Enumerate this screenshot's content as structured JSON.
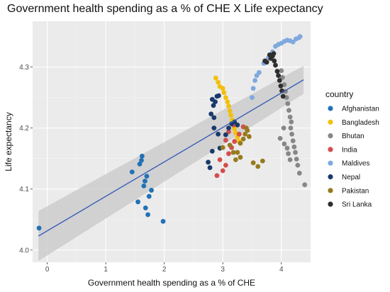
{
  "chart_data": {
    "type": "scatter",
    "title": "Government health spending as a % of CHE X Life expectancy",
    "xlabel": "Government health spending as a % of CHE",
    "ylabel": "Life expectancy",
    "xlim": [
      -0.25,
      4.5
    ],
    "ylim": [
      3.98,
      4.375
    ],
    "x_ticks": [
      0,
      1,
      2,
      3,
      4
    ],
    "x_tick_labels": [
      "0",
      "1",
      "2",
      "3",
      "4"
    ],
    "y_ticks": [
      4.0,
      4.1,
      4.2,
      4.3
    ],
    "y_tick_labels": [
      "4.0",
      "4.1",
      "4.2",
      "4.3"
    ],
    "grid": true,
    "legend_title": "country",
    "legend_position": "right",
    "trend_line": {
      "x": [
        -0.15,
        4.38
      ],
      "y": [
        4.023,
        4.279
      ],
      "ci_low": [
        3.982,
        4.256
      ],
      "ci_high": [
        4.064,
        4.302
      ],
      "color": "#3a5fb8"
    },
    "series": [
      {
        "name": "Afghanistan",
        "color": "#2171b5",
        "points": [
          [
            -0.14,
            4.036
          ],
          [
            1.45,
            4.128
          ],
          [
            1.55,
            4.079
          ],
          [
            1.58,
            4.141
          ],
          [
            1.61,
            4.147
          ],
          [
            1.62,
            4.154
          ],
          [
            1.65,
            4.105
          ],
          [
            1.67,
            4.113
          ],
          [
            1.68,
            4.069
          ],
          [
            1.7,
            4.121
          ],
          [
            1.72,
            4.058
          ],
          [
            1.74,
            4.088
          ],
          [
            1.78,
            4.098
          ],
          [
            1.98,
            4.047
          ]
        ]
      },
      {
        "name": "Bangladesh",
        "color": "#f2c00e",
        "points": [
          [
            2.88,
            4.282
          ],
          [
            2.92,
            4.275
          ],
          [
            2.95,
            4.268
          ],
          [
            3.0,
            4.265
          ],
          [
            3.02,
            4.258
          ],
          [
            3.05,
            4.25
          ],
          [
            3.08,
            4.243
          ],
          [
            3.1,
            4.236
          ],
          [
            3.12,
            4.228
          ],
          [
            3.14,
            4.221
          ],
          [
            3.16,
            4.213
          ],
          [
            3.18,
            4.206
          ],
          [
            3.2,
            4.199
          ],
          [
            3.22,
            4.192
          ],
          [
            3.25,
            4.185
          ],
          [
            3.28,
            4.178
          ]
        ]
      },
      {
        "name": "Bhutan",
        "color": "#878787",
        "points": [
          [
            4.0,
            4.294
          ],
          [
            4.02,
            4.283
          ],
          [
            4.05,
            4.271
          ],
          [
            4.07,
            4.26
          ],
          [
            4.09,
            4.25
          ],
          [
            4.11,
            4.24
          ],
          [
            4.13,
            4.229
          ],
          [
            4.15,
            4.218
          ],
          [
            4.17,
            4.21
          ],
          [
            4.16,
            4.2
          ],
          [
            4.18,
            4.19
          ],
          [
            4.2,
            4.179
          ],
          [
            4.22,
            4.169
          ],
          [
            4.24,
            4.16
          ],
          [
            4.26,
            4.149
          ],
          [
            4.28,
            4.139
          ],
          [
            4.31,
            4.126
          ],
          [
            4.4,
            4.107
          ],
          [
            4.04,
            4.2
          ],
          [
            3.98,
            4.183
          ],
          [
            4.05,
            4.174
          ],
          [
            4.1,
            4.167
          ],
          [
            4.12,
            4.158
          ],
          [
            4.15,
            4.148
          ]
        ]
      },
      {
        "name": "India",
        "color": "#d44d4d",
        "points": [
          [
            2.9,
            4.122
          ],
          [
            3.0,
            4.13
          ],
          [
            3.05,
            4.139
          ],
          [
            2.95,
            4.148
          ],
          [
            3.1,
            4.158
          ],
          [
            3.15,
            4.168
          ],
          [
            3.2,
            4.178
          ],
          [
            3.28,
            4.19
          ],
          [
            3.35,
            4.202
          ],
          [
            3.05,
            4.18
          ],
          [
            3.1,
            4.194
          ],
          [
            3.18,
            4.205
          ]
        ]
      },
      {
        "name": "Maldives",
        "color": "#7fa9de",
        "points": [
          [
            3.5,
            4.25
          ],
          [
            3.52,
            4.265
          ],
          [
            3.55,
            4.278
          ],
          [
            3.58,
            4.286
          ],
          [
            3.62,
            4.291
          ],
          [
            3.7,
            4.306
          ],
          [
            3.78,
            4.315
          ],
          [
            3.85,
            4.325
          ],
          [
            3.9,
            4.334
          ],
          [
            3.95,
            4.337
          ],
          [
            4.0,
            4.339
          ],
          [
            4.05,
            4.342
          ],
          [
            4.1,
            4.344
          ],
          [
            4.15,
            4.343
          ],
          [
            4.2,
            4.341
          ],
          [
            4.25,
            4.346
          ],
          [
            4.3,
            4.348
          ],
          [
            4.32,
            4.35
          ]
        ]
      },
      {
        "name": "Nepal",
        "color": "#1a3a6b",
        "points": [
          [
            2.75,
            4.144
          ],
          [
            2.78,
            4.135
          ],
          [
            2.82,
            4.162
          ],
          [
            2.85,
            4.2
          ],
          [
            2.8,
            4.223
          ],
          [
            2.84,
            4.237
          ],
          [
            2.87,
            4.243
          ],
          [
            2.9,
            4.252
          ],
          [
            2.93,
            4.253
          ],
          [
            2.82,
            4.247
          ],
          [
            2.85,
            4.217
          ],
          [
            2.92,
            4.19
          ],
          [
            2.95,
            4.167
          ],
          [
            3.05,
            4.189
          ],
          [
            3.1,
            4.2
          ],
          [
            3.15,
            4.207
          ],
          [
            3.2,
            4.21
          ],
          [
            3.25,
            4.205
          ]
        ]
      },
      {
        "name": "Pakistan",
        "color": "#967a1e",
        "points": [
          [
            3.0,
            4.168
          ],
          [
            3.12,
            4.172
          ],
          [
            3.18,
            4.16
          ],
          [
            3.25,
            4.16
          ],
          [
            3.3,
            4.175
          ],
          [
            3.35,
            4.182
          ],
          [
            3.38,
            4.19
          ],
          [
            3.4,
            4.2
          ],
          [
            3.42,
            4.196
          ],
          [
            3.45,
            4.186
          ],
          [
            3.22,
            4.148
          ],
          [
            3.3,
            4.152
          ],
          [
            3.52,
            4.143
          ],
          [
            3.6,
            4.137
          ],
          [
            3.68,
            4.146
          ]
        ]
      },
      {
        "name": "Sri Lanka",
        "color": "#2e2e2e",
        "points": [
          [
            3.8,
            4.32
          ],
          [
            3.85,
            4.318
          ],
          [
            3.88,
            4.31
          ],
          [
            3.9,
            4.303
          ],
          [
            3.93,
            4.293
          ],
          [
            3.95,
            4.286
          ],
          [
            3.97,
            4.278
          ],
          [
            3.99,
            4.269
          ],
          [
            4.01,
            4.261
          ],
          [
            4.03,
            4.252
          ],
          [
            3.82,
            4.314
          ],
          [
            3.87,
            4.322
          ],
          [
            3.75,
            4.308
          ],
          [
            3.72,
            4.31
          ]
        ]
      }
    ]
  }
}
